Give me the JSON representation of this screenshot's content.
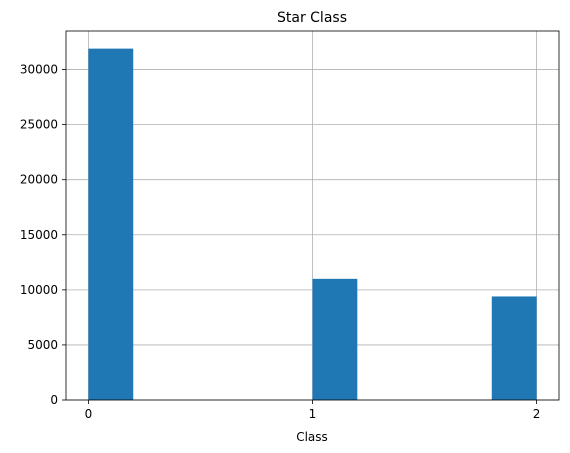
{
  "chart_data": {
    "type": "bar",
    "title": "Star Class",
    "xlabel": "Class",
    "ylabel": "",
    "xlim": [
      -0.1,
      2.1
    ],
    "ylim": [
      0,
      33500
    ],
    "grid": true,
    "x_ticks": [
      0,
      1,
      2
    ],
    "y_ticks": [
      0,
      5000,
      10000,
      15000,
      20000,
      25000,
      30000
    ],
    "bins": [
      {
        "start": 0.0,
        "end": 0.2,
        "value": 31900
      },
      {
        "start": 1.0,
        "end": 1.2,
        "value": 11000
      },
      {
        "start": 1.8,
        "end": 2.0,
        "value": 9400
      }
    ],
    "bar_color": "#1f77b4",
    "grid_color": "#b0b0b0"
  }
}
